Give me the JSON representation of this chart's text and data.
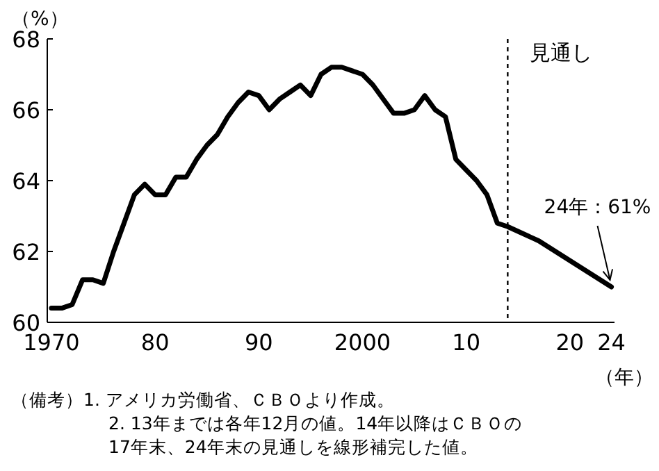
{
  "chart_data": {
    "type": "line",
    "ylabel": "（%）",
    "xlabel": "（年）",
    "x": [
      1970,
      1971,
      1972,
      1973,
      1974,
      1975,
      1976,
      1977,
      1978,
      1979,
      1980,
      1981,
      1982,
      1983,
      1984,
      1985,
      1986,
      1987,
      1988,
      1989,
      1990,
      1991,
      1992,
      1993,
      1994,
      1995,
      1996,
      1997,
      1998,
      1999,
      2000,
      2001,
      2002,
      2003,
      2004,
      2005,
      2006,
      2007,
      2008,
      2009,
      2010,
      2011,
      2012,
      2013,
      2014,
      2017,
      2024
    ],
    "series": [
      {
        "color": "#000000",
        "values": [
          60.4,
          60.4,
          60.5,
          61.2,
          61.2,
          61.1,
          62.0,
          62.8,
          63.6,
          63.9,
          63.6,
          63.6,
          64.1,
          64.1,
          64.6,
          65.0,
          65.3,
          65.8,
          66.2,
          66.5,
          66.4,
          66.0,
          66.3,
          66.5,
          66.7,
          66.4,
          67.0,
          67.2,
          67.2,
          67.1,
          67.0,
          66.7,
          66.3,
          65.9,
          65.9,
          66.0,
          66.4,
          66.0,
          65.8,
          64.6,
          64.3,
          64.0,
          63.6,
          62.8,
          62.7,
          62.3,
          61.0
        ]
      }
    ],
    "xlim": [
      1969.6,
      2024.3
    ],
    "ylim": [
      60,
      68
    ],
    "xticks": [
      {
        "value": 1970,
        "label": "1970"
      },
      {
        "value": 1980,
        "label": "80"
      },
      {
        "value": 1990,
        "label": "90"
      },
      {
        "value": 2000,
        "label": "2000"
      },
      {
        "value": 2010,
        "label": "10"
      },
      {
        "value": 2020,
        "label": "20"
      },
      {
        "value": 2024,
        "label": "24"
      }
    ],
    "yticks": [
      60,
      62,
      64,
      66,
      68
    ],
    "ref_lines": [
      {
        "axis": "x",
        "value": 2014,
        "label": "見通し",
        "line_style": "dashed",
        "color": "#000000"
      }
    ],
    "annotations": [
      {
        "text": "24年：61%",
        "x": 2024,
        "y": 61
      },
      "（備考）1. アメリカ労働省、ＣＢＯより作成。",
      "2. 13年までは各年12月の値。14年以降はＣＢＯの",
      "17年末、24年末の見通しを線形補完した値。"
    ]
  }
}
